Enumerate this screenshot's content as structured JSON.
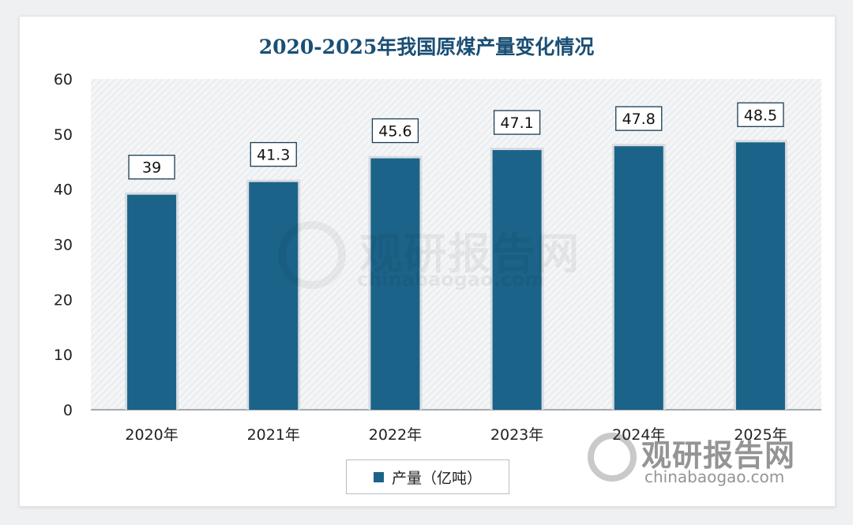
{
  "chart_data": {
    "type": "bar",
    "title": "2020-2025年我国原煤产量变化情况",
    "categories": [
      "2020年",
      "2021年",
      "2022年",
      "2023年",
      "2024年",
      "2025年"
    ],
    "series": [
      {
        "name": "产量（亿吨）",
        "values": [
          39,
          41.3,
          45.6,
          47.1,
          47.8,
          48.5
        ]
      }
    ],
    "data_labels": [
      "39",
      "41.3",
      "45.6",
      "47.1",
      "47.8",
      "48.5"
    ],
    "yticks": [
      "0",
      "10",
      "20",
      "30",
      "40",
      "50",
      "60"
    ],
    "ylim": [
      0,
      60
    ],
    "xlabel": "",
    "ylabel": "",
    "legend_position": "bottom",
    "bar_color": "#1b6389"
  },
  "watermark": {
    "cn": "观研报告网",
    "en": "chinabaogao.com"
  }
}
